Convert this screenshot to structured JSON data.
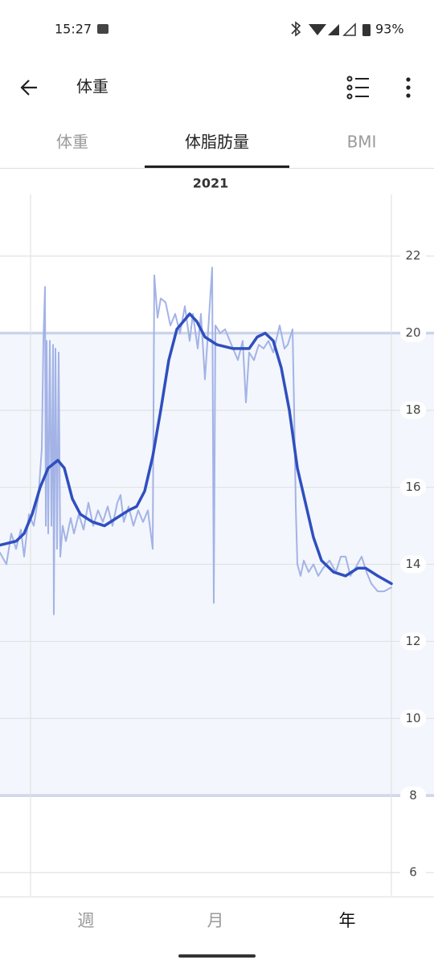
{
  "status_bar": {
    "time": "15:27",
    "battery": "93%"
  },
  "header": {
    "title": "体重"
  },
  "tabs": [
    "体重",
    "体脂肪量",
    "BMI"
  ],
  "active_tab": 1,
  "bottom_tabs": [
    "週",
    "月",
    "年"
  ],
  "active_bottom_tab": 2,
  "chart_data": {
    "type": "line",
    "title": "2021",
    "xlim": [
      0,
      270
    ],
    "ylim": [
      5.4,
      23.6
    ],
    "yticks": [
      6,
      8,
      10,
      12,
      14,
      16,
      18,
      20,
      22
    ],
    "grid": true,
    "target_range": [
      8,
      20
    ],
    "target_color": "#f3f6fc",
    "series": [
      {
        "color": "#a3b3e6",
        "x": [
          0,
          4,
          7,
          10,
          13,
          15,
          18,
          21,
          24,
          26,
          27,
          28,
          28.5,
          29,
          30,
          31,
          32,
          33,
          33.5,
          34.5,
          35.5,
          36.5,
          37.5,
          39,
          41,
          44,
          46,
          49,
          52,
          55,
          58,
          61,
          64,
          67,
          70,
          73,
          75,
          77,
          80,
          83,
          86,
          89,
          92,
          95,
          96,
          98,
          100,
          103,
          106,
          109,
          112,
          115,
          118,
          120,
          123,
          125,
          127.5,
          130,
          132,
          133,
          134,
          137,
          140,
          143,
          146,
          148,
          151,
          153,
          155,
          158,
          161,
          164,
          167,
          170,
          174,
          177,
          179,
          182,
          183,
          184,
          185,
          187,
          189,
          192,
          195,
          198,
          201,
          205,
          209,
          212,
          215,
          218,
          221,
          225,
          228,
          231,
          235,
          239,
          243.5
        ],
        "values": [
          14.3,
          14.0,
          14.8,
          14.4,
          14.9,
          14.2,
          15.3,
          15.0,
          15.8,
          17.0,
          19.8,
          21.2,
          15.0,
          19.8,
          14.8,
          19.8,
          15.0,
          19.7,
          12.7,
          19.6,
          14.4,
          19.5,
          14.2,
          15.0,
          14.6,
          15.2,
          14.8,
          15.3,
          14.9,
          15.6,
          15.0,
          15.4,
          15.1,
          15.5,
          15.0,
          15.6,
          15.8,
          15.1,
          15.5,
          15.0,
          15.4,
          15.1,
          15.4,
          14.4,
          21.5,
          20.4,
          20.9,
          20.8,
          20.2,
          20.5,
          20.0,
          20.7,
          19.8,
          20.5,
          19.6,
          20.5,
          18.8,
          20.4,
          21.7,
          13.0,
          20.2,
          20.0,
          20.1,
          19.8,
          19.5,
          19.3,
          19.8,
          18.2,
          19.5,
          19.3,
          19.7,
          19.6,
          19.8,
          19.5,
          20.2,
          19.6,
          19.7,
          20.1,
          18.0,
          15.5,
          14.0,
          13.7,
          14.1,
          13.8,
          14.0,
          13.7,
          13.9,
          14.1,
          13.8,
          14.2,
          14.2,
          13.7,
          13.9,
          14.2,
          13.8,
          13.5,
          13.3,
          13.3,
          13.4
        ]
      },
      {
        "color": "#2f4fbf",
        "x": [
          0,
          10,
          15,
          20,
          25,
          30,
          36,
          40,
          45,
          50,
          57.5,
          65,
          72.5,
          80,
          85,
          90,
          95,
          100,
          105,
          110,
          118,
          122.5,
          127.5,
          135,
          145,
          155,
          160,
          165,
          170,
          175,
          180,
          185,
          190,
          195,
          200,
          207.5,
          215,
          222.5,
          227.5,
          235,
          243.5
        ],
        "values": [
          14.5,
          14.6,
          14.8,
          15.3,
          16.0,
          16.5,
          16.7,
          16.5,
          15.7,
          15.3,
          15.1,
          15.0,
          15.2,
          15.4,
          15.5,
          15.9,
          16.8,
          18.0,
          19.3,
          20.1,
          20.5,
          20.3,
          19.9,
          19.7,
          19.6,
          19.6,
          19.9,
          20.0,
          19.8,
          19.1,
          18.0,
          16.5,
          15.6,
          14.7,
          14.1,
          13.8,
          13.7,
          13.9,
          13.9,
          13.7,
          13.5
        ]
      }
    ]
  }
}
